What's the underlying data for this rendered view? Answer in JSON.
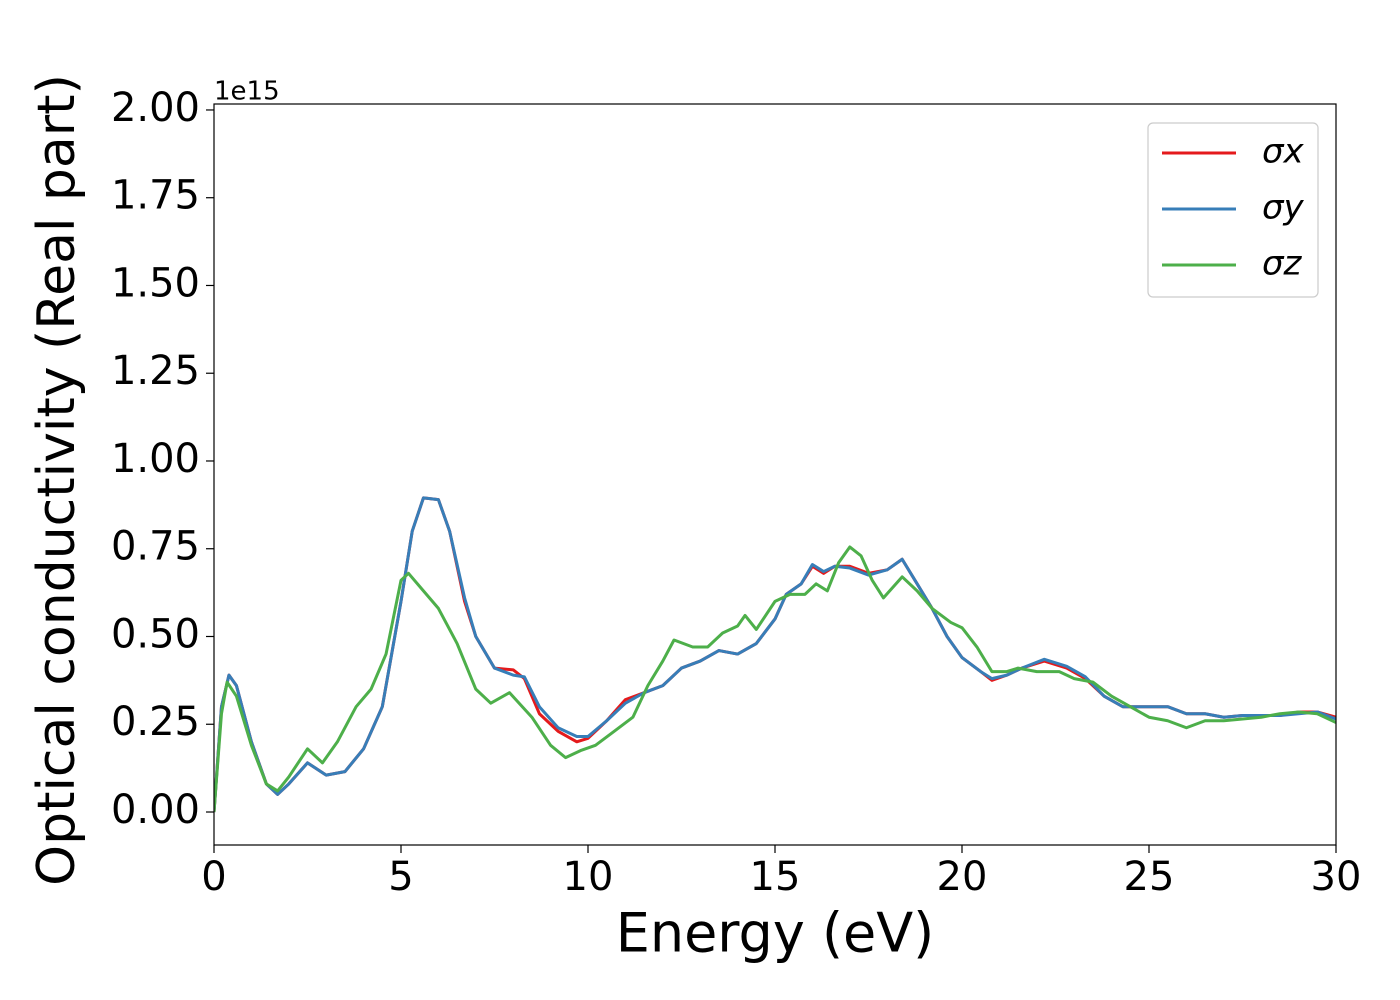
{
  "chart_data": {
    "type": "line",
    "xlabel": "Energy (eV)",
    "ylabel": "Optical conductivity (Real part)",
    "y_offset_label": "1e15",
    "xlim": [
      0,
      30
    ],
    "ylim": [
      -0.094,
      2.017
    ],
    "xticks": [
      0,
      5,
      10,
      15,
      20,
      25,
      30
    ],
    "yticks": [
      {
        "value": 0,
        "label": "0.00"
      },
      {
        "value": 0.25,
        "label": "0.25"
      },
      {
        "value": 0.5,
        "label": "0.50"
      },
      {
        "value": 0.75,
        "label": "0.75"
      },
      {
        "value": 1,
        "label": "1.00"
      },
      {
        "value": 1.25,
        "label": "1.25"
      },
      {
        "value": 1.5,
        "label": "1.50"
      },
      {
        "value": 1.75,
        "label": "1.75"
      },
      {
        "value": 2,
        "label": "2.00"
      }
    ],
    "grid": false,
    "legend": "upper right",
    "series": [
      {
        "name": "σx",
        "color": "#e41a1c",
        "x": [
          0,
          0.2,
          0.4,
          0.6,
          1.0,
          1.4,
          1.7,
          2.0,
          2.5,
          3.0,
          3.5,
          4.0,
          4.5,
          5.0,
          5.3,
          5.6,
          6.0,
          6.3,
          6.7,
          7.0,
          7.5,
          8.0,
          8.3,
          8.7,
          9.2,
          9.7,
          10.0,
          10.5,
          11.0,
          11.5,
          12.0,
          12.5,
          13.0,
          13.5,
          14.0,
          14.5,
          15.0,
          15.3,
          15.7,
          16.0,
          16.3,
          16.6,
          17.0,
          17.5,
          18.0,
          18.4,
          18.8,
          19.2,
          19.6,
          20.0,
          20.5,
          20.8,
          21.2,
          21.6,
          22.2,
          22.8,
          23.3,
          23.8,
          24.3,
          25.0,
          25.5,
          26.0,
          26.5,
          27.0,
          27.5,
          28.0,
          28.5,
          29.0,
          29.5,
          30
        ],
        "values": [
          0,
          0.3,
          0.39,
          0.36,
          0.2,
          0.08,
          0.05,
          0.08,
          0.14,
          0.105,
          0.115,
          0.18,
          0.3,
          0.6,
          0.8,
          0.895,
          0.89,
          0.8,
          0.6,
          0.5,
          0.41,
          0.405,
          0.38,
          0.28,
          0.23,
          0.2,
          0.21,
          0.26,
          0.32,
          0.34,
          0.36,
          0.41,
          0.43,
          0.46,
          0.45,
          0.48,
          0.55,
          0.62,
          0.65,
          0.7,
          0.68,
          0.7,
          0.7,
          0.68,
          0.69,
          0.72,
          0.65,
          0.58,
          0.5,
          0.44,
          0.4,
          0.375,
          0.39,
          0.41,
          0.43,
          0.41,
          0.38,
          0.33,
          0.3,
          0.3,
          0.3,
          0.28,
          0.28,
          0.27,
          0.275,
          0.275,
          0.275,
          0.285,
          0.285,
          0.27
        ]
      },
      {
        "name": "σy",
        "color": "#377eb8",
        "x": [
          0,
          0.2,
          0.4,
          0.6,
          1.0,
          1.4,
          1.7,
          2.0,
          2.5,
          3.0,
          3.5,
          4.0,
          4.5,
          5.0,
          5.3,
          5.6,
          6.0,
          6.3,
          6.7,
          7.0,
          7.5,
          8.0,
          8.3,
          8.7,
          9.2,
          9.7,
          10.0,
          10.5,
          11.0,
          11.5,
          12.0,
          12.5,
          13.0,
          13.5,
          14.0,
          14.5,
          15.0,
          15.3,
          15.7,
          16.0,
          16.3,
          16.6,
          17.0,
          17.5,
          18.0,
          18.4,
          18.8,
          19.2,
          19.6,
          20.0,
          20.5,
          20.8,
          21.2,
          21.6,
          22.2,
          22.8,
          23.3,
          23.8,
          24.3,
          25.0,
          25.5,
          26.0,
          26.5,
          27.0,
          27.5,
          28.0,
          28.5,
          29.0,
          29.5,
          30
        ],
        "values": [
          0,
          0.3,
          0.39,
          0.36,
          0.2,
          0.08,
          0.05,
          0.08,
          0.14,
          0.105,
          0.115,
          0.18,
          0.3,
          0.6,
          0.8,
          0.895,
          0.89,
          0.8,
          0.61,
          0.5,
          0.41,
          0.39,
          0.385,
          0.3,
          0.24,
          0.215,
          0.215,
          0.26,
          0.31,
          0.34,
          0.36,
          0.41,
          0.43,
          0.46,
          0.45,
          0.48,
          0.55,
          0.62,
          0.65,
          0.705,
          0.685,
          0.7,
          0.695,
          0.675,
          0.69,
          0.72,
          0.65,
          0.58,
          0.5,
          0.44,
          0.4,
          0.38,
          0.39,
          0.41,
          0.435,
          0.415,
          0.385,
          0.33,
          0.3,
          0.3,
          0.3,
          0.28,
          0.28,
          0.27,
          0.275,
          0.275,
          0.275,
          0.28,
          0.285,
          0.265
        ]
      },
      {
        "name": "σz",
        "color": "#4daf4a",
        "x": [
          0,
          0.2,
          0.35,
          0.6,
          1.0,
          1.4,
          1.7,
          2.0,
          2.5,
          2.9,
          3.3,
          3.8,
          4.2,
          4.6,
          5.0,
          5.2,
          5.6,
          6.0,
          6.5,
          7.0,
          7.4,
          7.9,
          8.5,
          9.0,
          9.4,
          9.8,
          10.2,
          10.7,
          11.2,
          11.6,
          12.0,
          12.3,
          12.8,
          13.2,
          13.6,
          14.0,
          14.2,
          14.5,
          15.0,
          15.4,
          15.8,
          16.1,
          16.4,
          16.7,
          17.0,
          17.3,
          17.6,
          17.9,
          18.4,
          18.8,
          19.2,
          19.7,
          20.0,
          20.4,
          20.8,
          21.2,
          21.5,
          22.0,
          22.6,
          23.0,
          23.5,
          24.0,
          24.5,
          25.0,
          25.5,
          26.0,
          26.5,
          27.0,
          27.5,
          28.0,
          28.5,
          29.0,
          29.5,
          30
        ],
        "values": [
          0,
          0.28,
          0.37,
          0.33,
          0.19,
          0.08,
          0.06,
          0.1,
          0.18,
          0.14,
          0.2,
          0.3,
          0.35,
          0.45,
          0.66,
          0.68,
          0.63,
          0.58,
          0.48,
          0.35,
          0.31,
          0.34,
          0.27,
          0.19,
          0.155,
          0.175,
          0.19,
          0.23,
          0.27,
          0.36,
          0.43,
          0.49,
          0.47,
          0.47,
          0.51,
          0.53,
          0.56,
          0.52,
          0.6,
          0.62,
          0.62,
          0.65,
          0.63,
          0.71,
          0.755,
          0.73,
          0.66,
          0.61,
          0.67,
          0.63,
          0.58,
          0.54,
          0.525,
          0.47,
          0.4,
          0.4,
          0.41,
          0.4,
          0.4,
          0.38,
          0.37,
          0.33,
          0.3,
          0.27,
          0.26,
          0.24,
          0.26,
          0.26,
          0.265,
          0.27,
          0.28,
          0.285,
          0.28,
          0.255
        ]
      }
    ]
  }
}
